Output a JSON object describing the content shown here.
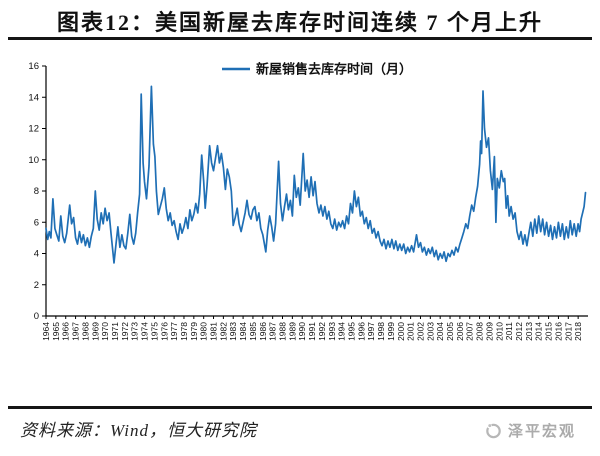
{
  "page": {
    "title": "图表12：美国新屋去库存时间连续 7 个月上升",
    "footer": {
      "source_label": "资料来源：Wind，恒大研究院",
      "brand": "泽平宏观"
    },
    "colors": {
      "line": "#1f6fb5",
      "axis": "#000000",
      "text": "#111111",
      "brand_gray": "#ababab"
    }
  },
  "chart_data": {
    "type": "line",
    "title": "图表12：美国新屋去库存时间连续 7 个月上升",
    "xlabel": "",
    "ylabel": "",
    "unit": "月",
    "grid": false,
    "legend": {
      "position": "top-center",
      "entries": [
        "新屋销售去库存时间（月）"
      ]
    },
    "x_axis": {
      "range": [
        1964,
        2019
      ],
      "label_rotation": -90,
      "tick_labels": [
        1964,
        1965,
        1966,
        1967,
        1968,
        1969,
        1970,
        1971,
        1972,
        1973,
        1974,
        1975,
        1976,
        1977,
        1978,
        1979,
        1980,
        1981,
        1982,
        1983,
        1984,
        1985,
        1986,
        1987,
        1988,
        1989,
        1990,
        1991,
        1992,
        1993,
        1994,
        1995,
        1996,
        1997,
        1998,
        1999,
        2000,
        2001,
        2002,
        2003,
        2004,
        2005,
        2006,
        2007,
        2008,
        2009,
        2010,
        2011,
        2012,
        2013,
        2014,
        2015,
        2016,
        2017,
        2018
      ]
    },
    "y_axis": {
      "range": [
        0,
        16
      ],
      "ticks": [
        0,
        2,
        4,
        6,
        8,
        10,
        12,
        14,
        16
      ]
    },
    "ylim": [
      0,
      16
    ],
    "series": [
      {
        "name": "新屋销售去库存时间（月）",
        "color": "#1f6fb5",
        "points": [
          [
            1964.0,
            5.6
          ],
          [
            1964.17,
            4.9
          ],
          [
            1964.33,
            5.4
          ],
          [
            1964.5,
            5.0
          ],
          [
            1964.7,
            7.5
          ],
          [
            1964.9,
            5.6
          ],
          [
            1965.1,
            5.2
          ],
          [
            1965.3,
            4.8
          ],
          [
            1965.5,
            6.4
          ],
          [
            1965.7,
            5.1
          ],
          [
            1965.9,
            4.7
          ],
          [
            1966.1,
            5.3
          ],
          [
            1966.4,
            7.1
          ],
          [
            1966.6,
            5.9
          ],
          [
            1966.8,
            6.3
          ],
          [
            1967.0,
            5.0
          ],
          [
            1967.2,
            4.6
          ],
          [
            1967.4,
            5.4
          ],
          [
            1967.6,
            4.7
          ],
          [
            1967.8,
            5.2
          ],
          [
            1968.0,
            4.5
          ],
          [
            1968.2,
            5.0
          ],
          [
            1968.4,
            4.4
          ],
          [
            1968.6,
            5.1
          ],
          [
            1968.8,
            5.6
          ],
          [
            1969.0,
            8.0
          ],
          [
            1969.2,
            6.2
          ],
          [
            1969.4,
            5.5
          ],
          [
            1969.6,
            6.6
          ],
          [
            1969.8,
            5.9
          ],
          [
            1970.0,
            6.9
          ],
          [
            1970.2,
            6.1
          ],
          [
            1970.4,
            6.6
          ],
          [
            1970.6,
            5.3
          ],
          [
            1970.9,
            3.4
          ],
          [
            1971.1,
            4.6
          ],
          [
            1971.3,
            5.7
          ],
          [
            1971.5,
            4.4
          ],
          [
            1971.7,
            5.2
          ],
          [
            1971.9,
            4.5
          ],
          [
            1972.1,
            4.3
          ],
          [
            1972.3,
            5.3
          ],
          [
            1972.5,
            6.5
          ],
          [
            1972.7,
            5.1
          ],
          [
            1972.9,
            4.6
          ],
          [
            1973.1,
            5.3
          ],
          [
            1973.3,
            6.6
          ],
          [
            1973.5,
            7.8
          ],
          [
            1973.66,
            14.2
          ],
          [
            1973.85,
            9.8
          ],
          [
            1974.0,
            8.6
          ],
          [
            1974.2,
            7.5
          ],
          [
            1974.45,
            9.6
          ],
          [
            1974.7,
            14.7
          ],
          [
            1974.9,
            11.0
          ],
          [
            1975.05,
            10.2
          ],
          [
            1975.2,
            8.0
          ],
          [
            1975.4,
            6.5
          ],
          [
            1975.6,
            7.0
          ],
          [
            1975.8,
            7.5
          ],
          [
            1976.0,
            8.2
          ],
          [
            1976.2,
            6.9
          ],
          [
            1976.4,
            6.1
          ],
          [
            1976.6,
            6.6
          ],
          [
            1976.8,
            5.8
          ],
          [
            1977.0,
            6.1
          ],
          [
            1977.2,
            5.4
          ],
          [
            1977.4,
            4.9
          ],
          [
            1977.6,
            5.9
          ],
          [
            1977.8,
            5.3
          ],
          [
            1978.0,
            5.7
          ],
          [
            1978.2,
            6.3
          ],
          [
            1978.4,
            5.6
          ],
          [
            1978.6,
            6.8
          ],
          [
            1978.8,
            6.1
          ],
          [
            1979.0,
            6.5
          ],
          [
            1979.2,
            7.2
          ],
          [
            1979.4,
            6.6
          ],
          [
            1979.6,
            7.8
          ],
          [
            1979.8,
            10.3
          ],
          [
            1980.0,
            8.6
          ],
          [
            1980.15,
            6.9
          ],
          [
            1980.35,
            8.4
          ],
          [
            1980.6,
            10.9
          ],
          [
            1980.8,
            9.8
          ],
          [
            1981.0,
            9.3
          ],
          [
            1981.2,
            10.1
          ],
          [
            1981.4,
            10.9
          ],
          [
            1981.6,
            9.8
          ],
          [
            1981.8,
            10.4
          ],
          [
            1982.0,
            9.5
          ],
          [
            1982.2,
            8.1
          ],
          [
            1982.4,
            9.4
          ],
          [
            1982.6,
            8.9
          ],
          [
            1982.8,
            8.0
          ],
          [
            1983.0,
            5.8
          ],
          [
            1983.2,
            6.3
          ],
          [
            1983.4,
            6.9
          ],
          [
            1983.6,
            5.9
          ],
          [
            1983.8,
            5.4
          ],
          [
            1984.0,
            6.0
          ],
          [
            1984.2,
            6.6
          ],
          [
            1984.4,
            7.4
          ],
          [
            1984.6,
            6.5
          ],
          [
            1984.8,
            6.2
          ],
          [
            1985.0,
            6.8
          ],
          [
            1985.2,
            7.0
          ],
          [
            1985.4,
            6.1
          ],
          [
            1985.6,
            6.6
          ],
          [
            1985.8,
            5.6
          ],
          [
            1986.0,
            5.2
          ],
          [
            1986.3,
            4.1
          ],
          [
            1986.5,
            5.5
          ],
          [
            1986.7,
            6.4
          ],
          [
            1986.9,
            5.7
          ],
          [
            1987.1,
            4.8
          ],
          [
            1987.3,
            5.9
          ],
          [
            1987.6,
            9.9
          ],
          [
            1987.8,
            7.2
          ],
          [
            1988.0,
            6.1
          ],
          [
            1988.2,
            7.0
          ],
          [
            1988.4,
            7.8
          ],
          [
            1988.6,
            6.8
          ],
          [
            1988.8,
            7.4
          ],
          [
            1989.0,
            6.4
          ],
          [
            1989.2,
            9.0
          ],
          [
            1989.4,
            7.6
          ],
          [
            1989.6,
            8.2
          ],
          [
            1989.8,
            7.1
          ],
          [
            1990.1,
            10.4
          ],
          [
            1990.3,
            8.0
          ],
          [
            1990.5,
            8.7
          ],
          [
            1990.7,
            7.6
          ],
          [
            1990.9,
            8.9
          ],
          [
            1991.1,
            7.7
          ],
          [
            1991.3,
            8.6
          ],
          [
            1991.5,
            7.2
          ],
          [
            1991.7,
            6.6
          ],
          [
            1991.9,
            7.1
          ],
          [
            1992.1,
            6.4
          ],
          [
            1992.3,
            7.0
          ],
          [
            1992.5,
            6.2
          ],
          [
            1992.7,
            6.7
          ],
          [
            1992.9,
            5.9
          ],
          [
            1993.1,
            5.6
          ],
          [
            1993.3,
            6.2
          ],
          [
            1993.5,
            5.5
          ],
          [
            1993.7,
            6.0
          ],
          [
            1993.9,
            5.7
          ],
          [
            1994.1,
            6.1
          ],
          [
            1994.3,
            5.6
          ],
          [
            1994.5,
            6.4
          ],
          [
            1994.7,
            5.9
          ],
          [
            1994.9,
            7.2
          ],
          [
            1995.1,
            6.6
          ],
          [
            1995.3,
            8.0
          ],
          [
            1995.5,
            7.0
          ],
          [
            1995.7,
            7.6
          ],
          [
            1995.9,
            6.4
          ],
          [
            1996.1,
            6.7
          ],
          [
            1996.3,
            5.9
          ],
          [
            1996.5,
            6.3
          ],
          [
            1996.7,
            5.6
          ],
          [
            1996.9,
            6.1
          ],
          [
            1997.1,
            5.3
          ],
          [
            1997.3,
            5.6
          ],
          [
            1997.5,
            5.0
          ],
          [
            1997.7,
            5.4
          ],
          [
            1997.9,
            4.8
          ],
          [
            1998.1,
            4.5
          ],
          [
            1998.3,
            4.9
          ],
          [
            1998.5,
            4.3
          ],
          [
            1998.7,
            4.8
          ],
          [
            1998.9,
            4.4
          ],
          [
            1999.1,
            4.9
          ],
          [
            1999.3,
            4.3
          ],
          [
            1999.5,
            4.8
          ],
          [
            1999.7,
            4.2
          ],
          [
            1999.9,
            4.6
          ],
          [
            2000.1,
            4.2
          ],
          [
            2000.3,
            4.6
          ],
          [
            2000.5,
            4.0
          ],
          [
            2000.7,
            4.4
          ],
          [
            2000.9,
            4.1
          ],
          [
            2001.1,
            4.5
          ],
          [
            2001.3,
            4.1
          ],
          [
            2001.6,
            5.2
          ],
          [
            2001.8,
            4.4
          ],
          [
            2002.0,
            4.7
          ],
          [
            2002.2,
            4.1
          ],
          [
            2002.4,
            4.4
          ],
          [
            2002.6,
            3.9
          ],
          [
            2002.8,
            4.3
          ],
          [
            2003.0,
            4.0
          ],
          [
            2003.2,
            4.4
          ],
          [
            2003.4,
            3.8
          ],
          [
            2003.6,
            4.2
          ],
          [
            2003.8,
            3.6
          ],
          [
            2004.0,
            4.0
          ],
          [
            2004.2,
            3.7
          ],
          [
            2004.4,
            4.1
          ],
          [
            2004.6,
            3.5
          ],
          [
            2004.8,
            4.0
          ],
          [
            2005.0,
            3.8
          ],
          [
            2005.2,
            4.2
          ],
          [
            2005.4,
            3.9
          ],
          [
            2005.6,
            4.4
          ],
          [
            2005.8,
            4.1
          ],
          [
            2006.0,
            4.6
          ],
          [
            2006.2,
            5.0
          ],
          [
            2006.4,
            5.4
          ],
          [
            2006.6,
            5.9
          ],
          [
            2006.8,
            5.6
          ],
          [
            2007.0,
            6.4
          ],
          [
            2007.2,
            7.1
          ],
          [
            2007.4,
            6.7
          ],
          [
            2007.6,
            7.6
          ],
          [
            2007.8,
            8.3
          ],
          [
            2008.0,
            9.7
          ],
          [
            2008.1,
            11.2
          ],
          [
            2008.2,
            10.4
          ],
          [
            2008.35,
            14.4
          ],
          [
            2008.5,
            12.0
          ],
          [
            2008.7,
            10.8
          ],
          [
            2008.9,
            11.4
          ],
          [
            2009.1,
            9.3
          ],
          [
            2009.3,
            8.1
          ],
          [
            2009.5,
            10.2
          ],
          [
            2009.65,
            6.0
          ],
          [
            2009.8,
            8.8
          ],
          [
            2010.0,
            8.2
          ],
          [
            2010.2,
            9.3
          ],
          [
            2010.4,
            8.6
          ],
          [
            2010.55,
            8.8
          ],
          [
            2010.7,
            6.9
          ],
          [
            2010.85,
            7.7
          ],
          [
            2011.0,
            6.4
          ],
          [
            2011.2,
            7.0
          ],
          [
            2011.4,
            6.2
          ],
          [
            2011.6,
            6.6
          ],
          [
            2011.8,
            5.4
          ],
          [
            2012.0,
            4.9
          ],
          [
            2012.2,
            5.4
          ],
          [
            2012.4,
            4.6
          ],
          [
            2012.6,
            5.2
          ],
          [
            2012.8,
            4.5
          ],
          [
            2013.0,
            5.3
          ],
          [
            2013.2,
            6.0
          ],
          [
            2013.4,
            5.1
          ],
          [
            2013.6,
            6.2
          ],
          [
            2013.8,
            5.3
          ],
          [
            2014.0,
            6.4
          ],
          [
            2014.2,
            5.4
          ],
          [
            2014.4,
            6.2
          ],
          [
            2014.6,
            5.2
          ],
          [
            2014.8,
            6.0
          ],
          [
            2015.0,
            5.1
          ],
          [
            2015.2,
            5.8
          ],
          [
            2015.4,
            4.9
          ],
          [
            2015.6,
            5.7
          ],
          [
            2015.8,
            5.0
          ],
          [
            2016.0,
            6.0
          ],
          [
            2016.2,
            5.1
          ],
          [
            2016.4,
            5.9
          ],
          [
            2016.6,
            4.9
          ],
          [
            2016.8,
            5.7
          ],
          [
            2017.0,
            5.0
          ],
          [
            2017.2,
            6.1
          ],
          [
            2017.4,
            5.2
          ],
          [
            2017.6,
            5.9
          ],
          [
            2017.8,
            5.1
          ],
          [
            2018.0,
            5.9
          ],
          [
            2018.15,
            5.4
          ],
          [
            2018.3,
            6.2
          ],
          [
            2018.45,
            6.6
          ],
          [
            2018.6,
            7.0
          ],
          [
            2018.75,
            7.9
          ]
        ]
      }
    ]
  }
}
